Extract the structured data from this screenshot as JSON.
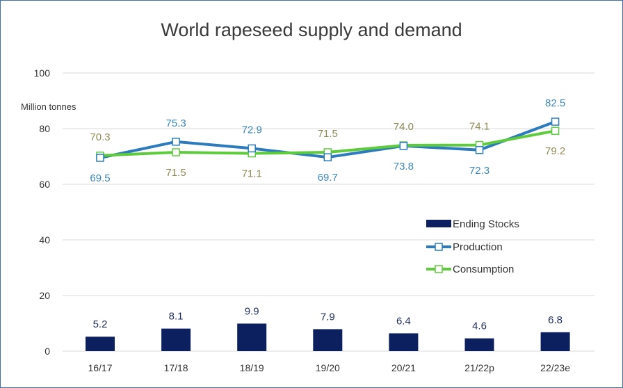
{
  "chart_data": {
    "type": "bar",
    "title": "World rapeseed supply and demand",
    "ylabel": "Million tonnes",
    "xlabel": "",
    "ylim": [
      0,
      100
    ],
    "yticks": [
      0,
      20,
      40,
      60,
      80,
      100
    ],
    "grid": true,
    "legend_position": "right",
    "categories": [
      "16/17",
      "17/18",
      "18/19",
      "19/20",
      "20/21",
      "21/22p",
      "22/23e"
    ],
    "series": [
      {
        "name": "Ending Stocks",
        "type": "bar",
        "color": "#0c1f5e",
        "values": [
          5.2,
          8.1,
          9.9,
          7.9,
          6.4,
          4.6,
          6.8
        ]
      },
      {
        "name": "Production",
        "type": "line",
        "color": "#2b7bbd",
        "values": [
          69.5,
          75.3,
          72.9,
          69.7,
          73.8,
          72.3,
          82.5
        ]
      },
      {
        "name": "Consumption",
        "type": "line",
        "color": "#5ecb3c",
        "values": [
          70.3,
          71.5,
          71.1,
          71.5,
          74.0,
          74.1,
          79.2
        ]
      }
    ]
  }
}
